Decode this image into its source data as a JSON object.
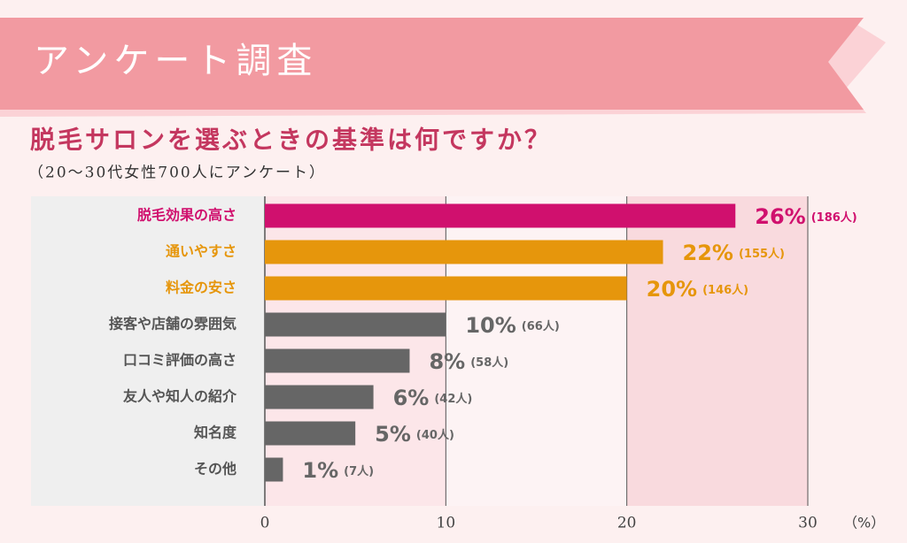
{
  "header": "アンケート調査",
  "chart_data": {
    "type": "bar",
    "orientation": "horizontal",
    "title": "脱毛サロンを選ぶときの基準は何ですか？",
    "subtitle": "（20〜30代女性700人にアンケート）",
    "categories": [
      "脱毛効果の高さ",
      "通いやすさ",
      "料金の安さ",
      "接客や店舗の雰囲気",
      "口コミ評価の高さ",
      "友人や知人の紹介",
      "知名度",
      "その他"
    ],
    "values": [
      26,
      22,
      20,
      10,
      8,
      6,
      5,
      1
    ],
    "value_labels": [
      "26%",
      "22%",
      "20%",
      "10%",
      "8%",
      "6%",
      "5%",
      "1%"
    ],
    "count_labels": [
      "(186人)",
      "(155人)",
      "(146人)",
      "(66人)",
      "(58人)",
      "(42人)",
      "(40人)",
      "(7人)"
    ],
    "colors": [
      "#d0106e",
      "#e6960c",
      "#e6960c",
      "#666666",
      "#666666",
      "#666666",
      "#666666",
      "#666666"
    ],
    "xlim": [
      0,
      30
    ],
    "xticks": [
      0,
      10,
      20,
      30
    ],
    "x_unit": "（%）",
    "grid": true
  }
}
